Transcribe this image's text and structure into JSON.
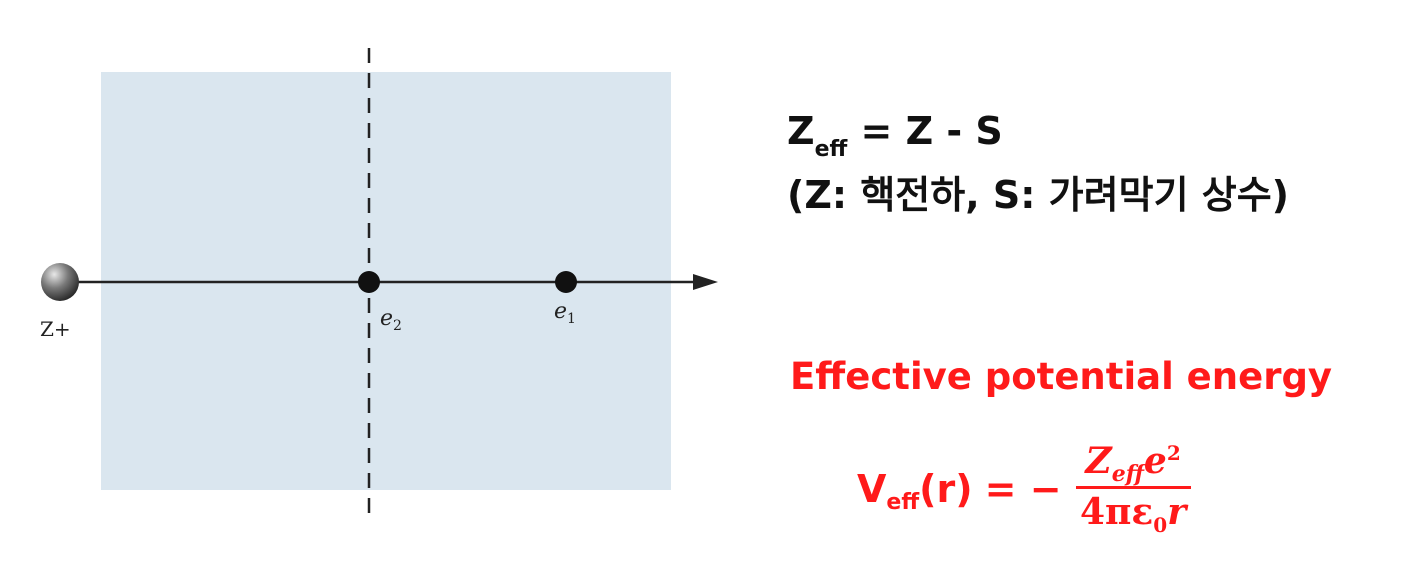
{
  "diagram": {
    "nucleus_label": "Z+",
    "electron2_label": "e",
    "electron2_sub": "2",
    "electron1_label": "e",
    "electron1_sub": "1",
    "colors": {
      "shield_region": "#dae6ef",
      "axis": "#222222",
      "electron": "#111111",
      "nucleus": "#555555"
    }
  },
  "equation_black": {
    "lhs_symbol": "Z",
    "lhs_sub": "eff",
    "rhs": "= Z - S",
    "line2": "(Z: 핵전하, S: 가려막기 상수)"
  },
  "effective_potential": {
    "heading": "Effective potential energy",
    "lhs_symbol": "V",
    "lhs_sub": "eff",
    "lhs_arg": "(r)",
    "equals_minus": "= −",
    "numerator_Z": "Z",
    "numerator_Z_sub": "eff",
    "numerator_e": "e",
    "numerator_e_sup": "2",
    "denominator_prefix": "4πε",
    "denominator_sub": "0",
    "denominator_r": "r",
    "color": "#ff1a1a"
  }
}
